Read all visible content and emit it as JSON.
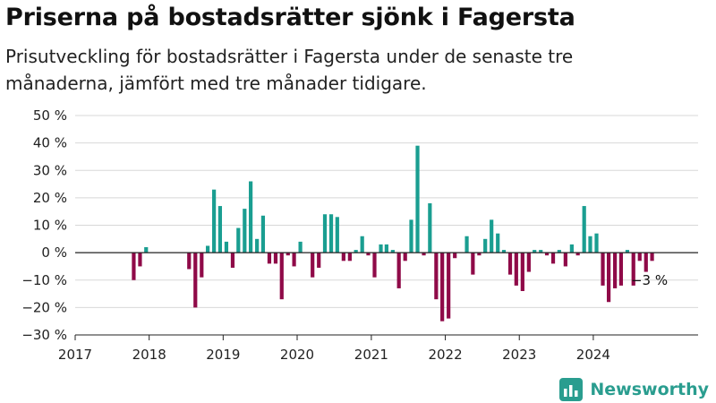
{
  "title": "Priserna på bostadsrätter sjönk i Fagersta",
  "subtitle": "Prisutveckling för bostadsrätter i Fagersta under de senaste tre månaderna, jämfört med tre månader tidigare.",
  "brand": {
    "name": "Newsworthy",
    "icon": "bar-chart-logo-icon"
  },
  "colors": {
    "positive": "#1a9e91",
    "negative": "#8f0a48",
    "grid": "#d8d8d8",
    "zero": "#222222"
  },
  "chart_data": {
    "type": "bar",
    "title": "Priserna på bostadsrätter sjönk i Fagersta",
    "xlabel": "",
    "ylabel": "",
    "xlim": [
      "2017-01-01",
      "2025-06-01"
    ],
    "ylim": [
      -30,
      50
    ],
    "yticks": [
      -30,
      -20,
      -10,
      0,
      10,
      20,
      30,
      40,
      50
    ],
    "ytick_labels": [
      "−30 %",
      "−20 %",
      "−10 %",
      "0 %",
      "10 %",
      "20 %",
      "30 %",
      "40 %",
      "50 %"
    ],
    "xticks": [
      "2017-01-01",
      "2018-01-01",
      "2019-01-01",
      "2020-01-01",
      "2021-01-01",
      "2022-01-01",
      "2023-01-01",
      "2024-01-01"
    ],
    "xtick_labels": [
      "2017",
      "2018",
      "2019",
      "2020",
      "2021",
      "2022",
      "2023",
      "2024"
    ],
    "grid": true,
    "legend": "none",
    "series": [
      {
        "name": "",
        "x": [
          "2017-10",
          "2017-11",
          "2017-12",
          "2018-07",
          "2018-08",
          "2018-09",
          "2018-10",
          "2018-11",
          "2018-12",
          "2019-01",
          "2019-02",
          "2019-03",
          "2019-04",
          "2019-05",
          "2019-06",
          "2019-07",
          "2019-08",
          "2019-09",
          "2019-10",
          "2019-11",
          "2019-12",
          "2020-01",
          "2020-03",
          "2020-04",
          "2020-05",
          "2020-06",
          "2020-07",
          "2020-08",
          "2020-09",
          "2020-10",
          "2020-11",
          "2020-12",
          "2021-01",
          "2021-02",
          "2021-03",
          "2021-04",
          "2021-05",
          "2021-06",
          "2021-07",
          "2021-08",
          "2021-09",
          "2021-10",
          "2021-11",
          "2021-12",
          "2022-01",
          "2022-02",
          "2022-04",
          "2022-05",
          "2022-06",
          "2022-07",
          "2022-08",
          "2022-09",
          "2022-10",
          "2022-11",
          "2022-12",
          "2023-01",
          "2023-02",
          "2023-03",
          "2023-04",
          "2023-05",
          "2023-06",
          "2023-07",
          "2023-08",
          "2023-09",
          "2023-10",
          "2023-11",
          "2023-12",
          "2024-01",
          "2024-02",
          "2024-03",
          "2024-04",
          "2024-05",
          "2024-06",
          "2024-07",
          "2024-08",
          "2024-09",
          "2024-10"
        ],
        "values": [
          -10,
          -5,
          2,
          -6,
          -20,
          -9,
          2.5,
          23,
          17,
          4,
          -5.5,
          9,
          16,
          26,
          5,
          13.5,
          -4,
          -4,
          -17,
          -1,
          -5,
          4,
          -9,
          -5.5,
          14,
          14,
          13,
          -3,
          -3,
          1,
          6,
          -1,
          -9,
          3,
          3,
          1,
          -13,
          -3,
          12,
          39,
          -1,
          18,
          -17,
          -25,
          -24,
          -2,
          6,
          -8,
          -1,
          5,
          12,
          7,
          1,
          -8,
          -12,
          -14,
          -7,
          1,
          1,
          -1,
          -4,
          1,
          -5,
          3,
          -1,
          17,
          6,
          7,
          -12,
          -18,
          -13,
          -12,
          1,
          -12,
          -3,
          -7,
          -3
        ]
      }
    ],
    "annotations": [
      {
        "text": "−3 %",
        "x": "2024-10",
        "y": -3
      }
    ]
  }
}
